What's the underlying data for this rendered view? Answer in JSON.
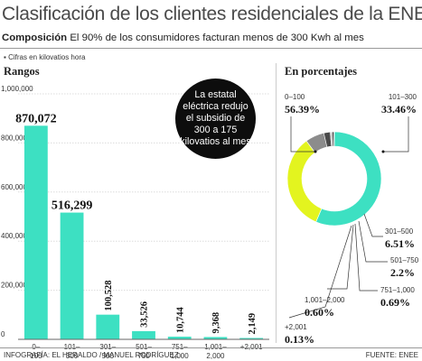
{
  "header": {
    "title": "Clasificación de los clientes residenciales de la ENEE",
    "subtitle_bold": "Composición",
    "subtitle_rest": "El 90% de los consumidores facturan menos de 300 Kwh al mes",
    "note": "Cifras en kilovatios hora"
  },
  "sections": {
    "left": "Rangos",
    "right": "En porcentajes"
  },
  "callout": "La estatal eléctrica redujo el subsidio de 300 a 175 kilovatios al mes",
  "footer": {
    "left": "INFOGRAFÍA: EL HERALDO / MANUEL RODRÍGUEZ",
    "right": "FUENTE: ENEE"
  },
  "colors": {
    "bar": "#3de0c2",
    "pie_teal": "#3de0c2",
    "pie_yellow": "#e3f41f",
    "pie_gray": "#8c8c8c",
    "pie_dark": "#4a4a4a"
  },
  "chart_data": [
    {
      "type": "bar",
      "title": "Rangos",
      "categories": [
        "0–100",
        "101–300",
        "301–500",
        "501–750",
        "751–1,000",
        "1,001–2,000",
        "+2,001"
      ],
      "values": [
        870072,
        516299,
        100528,
        33526,
        10744,
        9368,
        2149
      ],
      "value_labels": [
        "870,072",
        "516,299",
        "100,528",
        "33,526",
        "10,744",
        "9,368",
        "2,149"
      ],
      "yticks": [
        0,
        200000,
        400000,
        600000,
        800000,
        1000000
      ],
      "ytick_labels": [
        "0",
        "200,000",
        "400,000",
        "600,000",
        "800,000",
        "1,000,000"
      ],
      "ylim": [
        0,
        1000000
      ],
      "grid": true
    },
    {
      "type": "pie",
      "title": "En porcentajes",
      "slices": [
        {
          "label": "0–100",
          "value": 56.39,
          "display": "56.39%",
          "color": "#3de0c2"
        },
        {
          "label": "101–300",
          "value": 33.46,
          "display": "33.46%",
          "color": "#e3f41f"
        },
        {
          "label": "301–500",
          "value": 6.51,
          "display": "6.51%",
          "color": "#8c8c8c"
        },
        {
          "label": "501–750",
          "value": 2.2,
          "display": "2.2%",
          "color": "#4a4a4a"
        },
        {
          "label": "751–1,000",
          "value": 0.69,
          "display": "0.69%",
          "color": "#bdbdbd"
        },
        {
          "label": "1,001–2,000",
          "value": 0.6,
          "display": "0.60%",
          "color": "#2a2a2a"
        },
        {
          "label": "+2,001",
          "value": 0.13,
          "display": "0.13%",
          "color": "#dddddd"
        }
      ]
    }
  ]
}
